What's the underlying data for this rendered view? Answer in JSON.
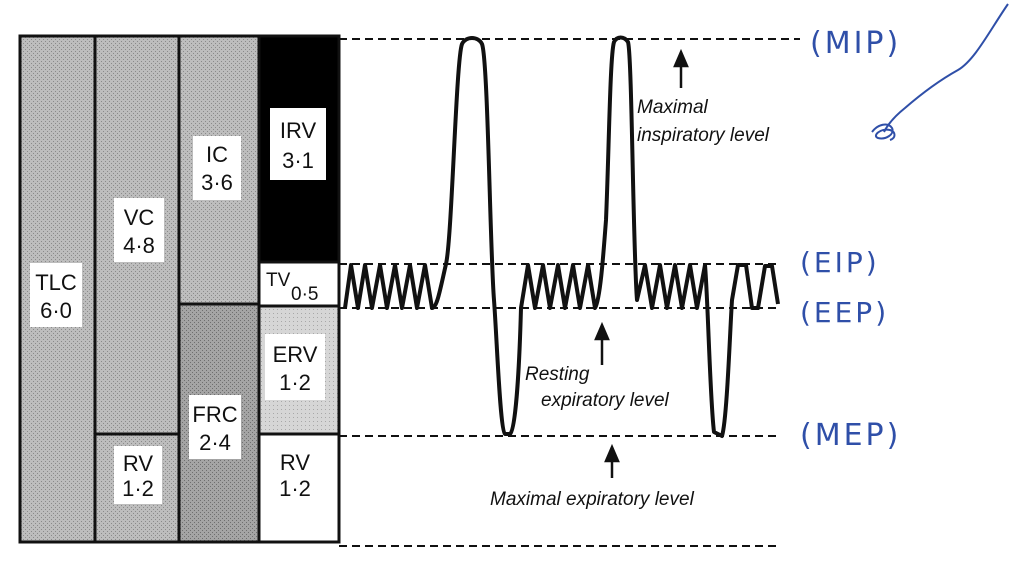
{
  "volumes": {
    "tlc": {
      "abbr": "TLC",
      "value": "6·0"
    },
    "vc": {
      "abbr": "VC",
      "value": "4·8"
    },
    "rv_left": {
      "abbr": "RV",
      "value": "1·2"
    },
    "ic": {
      "abbr": "IC",
      "value": "3·6"
    },
    "frc": {
      "abbr": "FRC",
      "value": "2·4"
    },
    "irv": {
      "abbr": "IRV",
      "value": "3·1"
    },
    "tv": {
      "abbr": "TV",
      "value": "0·5"
    },
    "erv": {
      "abbr": "ERV",
      "value": "1·2"
    },
    "rv_right": {
      "abbr": "RV",
      "value": "1·2"
    }
  },
  "levels": {
    "max_insp": [
      "Maximal",
      "inspiratory level"
    ],
    "resting": [
      "Resting",
      "expiratory level"
    ],
    "max_exp": "Maximal expiratory level"
  },
  "handwritten": {
    "mip": "(MIP)",
    "eip": "(EIP)",
    "eep": "(EEP)",
    "mep": "(MEP)"
  },
  "colors": {
    "outline": "#111111",
    "stipple_dark": "#9a9a9a",
    "stipple_mid": "#b8b8b8",
    "stipple_light": "#d0d0d0",
    "irv_fill": "#000000",
    "ink_blue": "#2f4fa8"
  }
}
